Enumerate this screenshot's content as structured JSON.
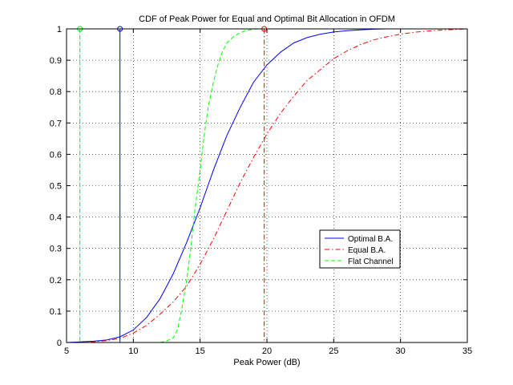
{
  "chart_data": {
    "type": "line",
    "title": "CDF of Peak Power for Equal and Optimal Bit Allocation in OFDM",
    "xlabel": "Peak Power (dB)",
    "ylabel": "",
    "xlim": [
      5,
      35
    ],
    "ylim": [
      0,
      1
    ],
    "xticks": [
      "5",
      "10",
      "15",
      "20",
      "25",
      "30",
      "35"
    ],
    "yticks": [
      "0",
      "0.1",
      "0.2",
      "0.3",
      "0.4",
      "0.5",
      "0.6",
      "0.7",
      "0.8",
      "0.9",
      "1"
    ],
    "grid": true,
    "legend_position": "lower-right",
    "series": [
      {
        "name": "Optimal B.A.",
        "color": "#0000ff",
        "style": "solid",
        "x": [
          5,
          6,
          7,
          8,
          9,
          10,
          11,
          12,
          13,
          14,
          15,
          16,
          17,
          18,
          19,
          20,
          21,
          22,
          23,
          24,
          25,
          26,
          27,
          28,
          29,
          29.5
        ],
        "y": [
          0,
          0.002,
          0.004,
          0.008,
          0.018,
          0.04,
          0.08,
          0.14,
          0.22,
          0.32,
          0.43,
          0.55,
          0.66,
          0.75,
          0.83,
          0.885,
          0.925,
          0.955,
          0.972,
          0.983,
          0.99,
          0.994,
          0.997,
          0.999,
          1.0,
          1.0
        ]
      },
      {
        "name": "Equal B.A.",
        "color": "#ff0000",
        "style": "dashdot",
        "x": [
          6,
          7,
          8,
          9,
          10,
          11,
          12,
          13,
          14,
          15,
          16,
          17,
          18,
          19,
          20,
          21,
          22,
          23,
          24,
          25,
          26,
          27,
          28,
          29,
          30,
          31,
          32,
          33,
          34,
          35
        ],
        "y": [
          0,
          0.002,
          0.006,
          0.013,
          0.03,
          0.055,
          0.09,
          0.13,
          0.18,
          0.25,
          0.33,
          0.42,
          0.51,
          0.59,
          0.665,
          0.73,
          0.785,
          0.835,
          0.87,
          0.905,
          0.93,
          0.95,
          0.965,
          0.975,
          0.983,
          0.989,
          0.993,
          0.996,
          0.998,
          1.0
        ]
      },
      {
        "name": "Flat Channel",
        "color": "#00ff00",
        "style": "dashed",
        "x": [
          12,
          12.5,
          13,
          13.3,
          13.6,
          14,
          14.3,
          14.6,
          15,
          15.3,
          15.6,
          16,
          16.3,
          16.6,
          17,
          17.5,
          18,
          18.5,
          19,
          19.5
        ],
        "y": [
          0,
          0.005,
          0.015,
          0.04,
          0.1,
          0.2,
          0.3,
          0.42,
          0.55,
          0.66,
          0.75,
          0.83,
          0.88,
          0.92,
          0.955,
          0.975,
          0.988,
          0.995,
          0.999,
          1.0
        ]
      }
    ],
    "markers": [
      {
        "series": "Optimal B.A.",
        "x": 9,
        "color": "#0000ff",
        "style": "solid"
      },
      {
        "series": "Equal B.A.",
        "x": 19.8,
        "color": "#ff0000",
        "style": "dashdot"
      },
      {
        "series": "Flat Channel",
        "x": 6,
        "color": "#00ff00",
        "style": "dashed"
      }
    ]
  }
}
